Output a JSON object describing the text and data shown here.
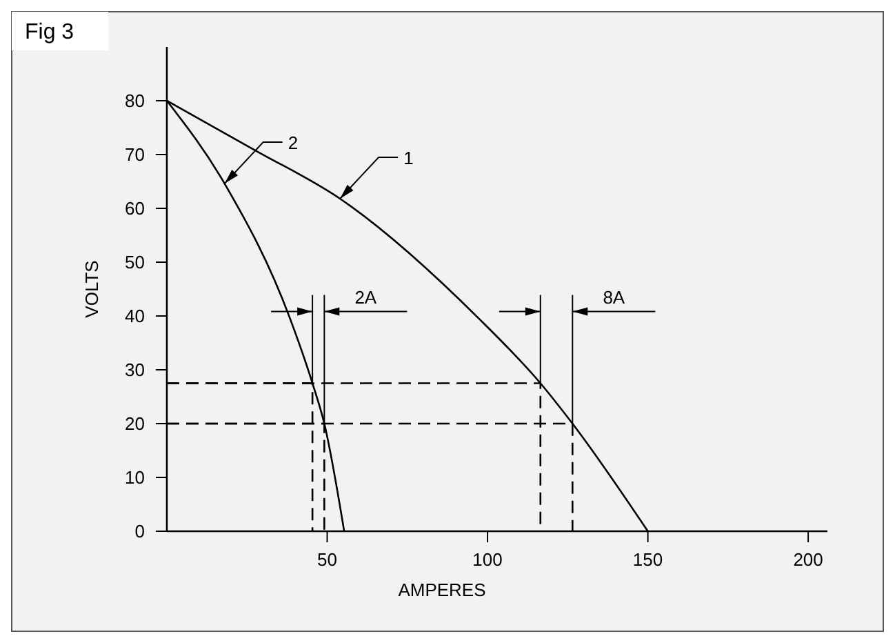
{
  "chart_data": {
    "type": "line",
    "title": "Fig 3",
    "xlabel": "AMPERES",
    "ylabel": "VOLTS",
    "xlim": [
      0,
      206
    ],
    "xticks": [
      50,
      100,
      150,
      200
    ],
    "ylim": [
      0,
      90
    ],
    "yticks": [
      0,
      10,
      20,
      30,
      40,
      50,
      60,
      70,
      80
    ],
    "grid": false,
    "marker": "none",
    "series": [
      {
        "color": "#000000",
        "line_style": "solid",
        "x": [
          0,
          27.5,
          54,
          97,
          116.5,
          126.5,
          150
        ],
        "values": [
          80,
          70.8,
          61.8,
          39.7,
          27.5,
          20,
          0
        ]
      },
      {
        "color": "#000000",
        "line_style": "solid",
        "x": [
          0,
          18,
          38.3,
          45.4,
          49.1,
          55.3
        ],
        "values": [
          80,
          64.6,
          39.7,
          27.5,
          20,
          0
        ]
      },
      {
        "color": "#000000",
        "line_style": "dashed",
        "x": [
          0,
          45.4,
          45.4
        ],
        "values": [
          27.5,
          27.5,
          0
        ]
      },
      {
        "color": "#000000",
        "line_style": "dashed",
        "x": [
          0,
          49.1,
          49.1
        ],
        "values": [
          20,
          20,
          0
        ]
      },
      {
        "color": "#000000",
        "line_style": "dashed",
        "x": [
          0,
          116.5,
          116.5
        ],
        "values": [
          27.5,
          27.5,
          0
        ]
      },
      {
        "color": "#000000",
        "line_style": "dashed",
        "x": [
          0,
          126.5,
          126.5
        ],
        "values": [
          20,
          20,
          0
        ]
      }
    ],
    "annotations": [
      {
        "text": "1",
        "x": 54,
        "y": 61.8
      },
      {
        "text": "2",
        "x": 18,
        "y": 64.6
      },
      "2A",
      "8A"
    ]
  }
}
